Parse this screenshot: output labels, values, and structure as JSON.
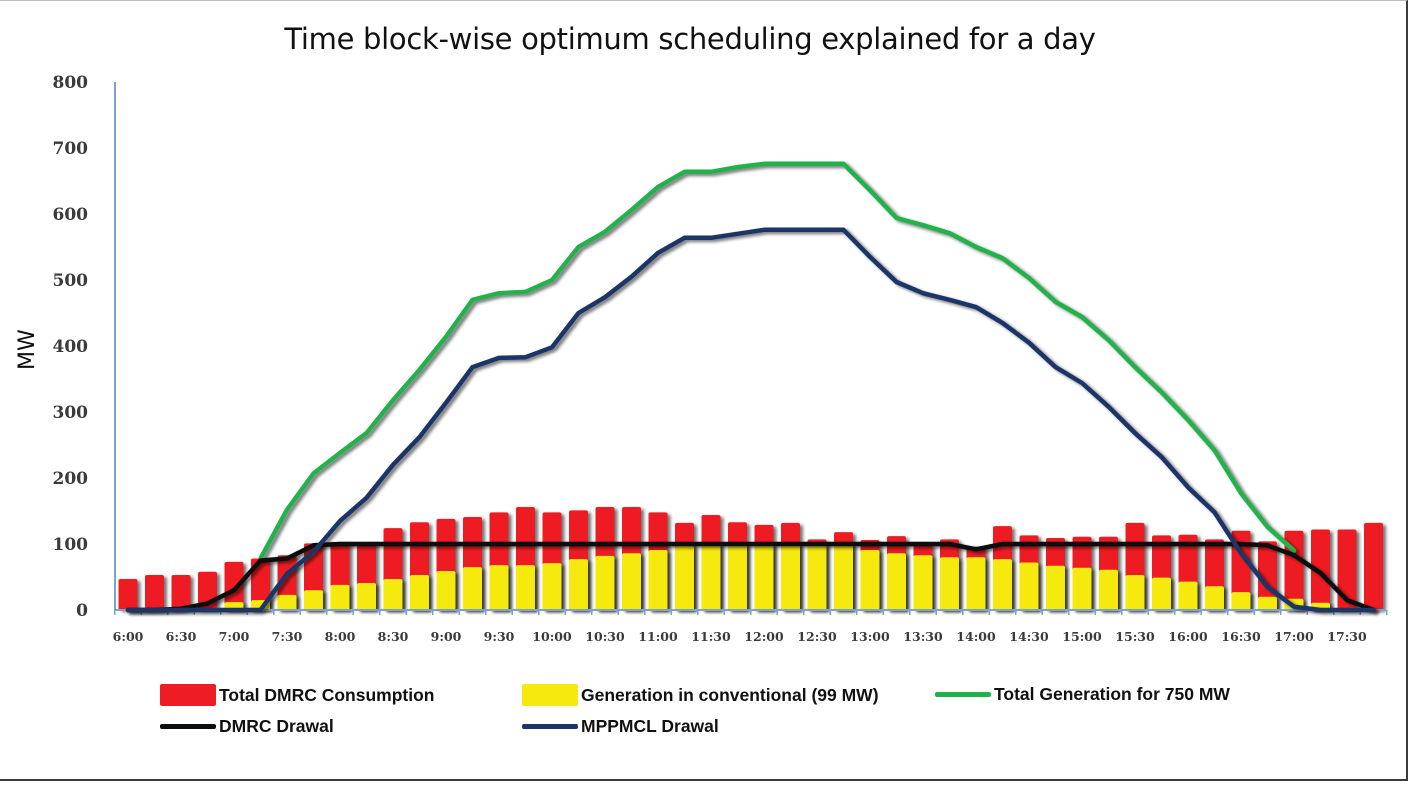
{
  "chart_data": {
    "type": "bar",
    "title": "Time block-wise optimum scheduling explained for a day",
    "xlabel": "",
    "ylabel": "MW",
    "ylim": [
      0,
      800
    ],
    "yticks": [
      0,
      100,
      200,
      300,
      400,
      500,
      600,
      700,
      800
    ],
    "grid": false,
    "legend_position": "bottom",
    "x": [
      "6:00",
      "6:15",
      "6:30",
      "6:45",
      "7:00",
      "7:15",
      "7:30",
      "7:45",
      "8:00",
      "8:15",
      "8:30",
      "8:45",
      "9:00",
      "9:15",
      "9:30",
      "9:45",
      "10:00",
      "10:15",
      "10:30",
      "10:45",
      "11:00",
      "11:15",
      "11:30",
      "11:45",
      "12:00",
      "12:15",
      "12:30",
      "12:45",
      "13:00",
      "13:15",
      "13:30",
      "13:45",
      "14:00",
      "14:15",
      "14:30",
      "14:45",
      "15:00",
      "15:15",
      "15:30",
      "15:45",
      "16:00",
      "16:15",
      "16:30",
      "16:45",
      "17:00",
      "17:15",
      "17:30",
      "17:45"
    ],
    "xtick_labels": [
      "6:00",
      "6:30",
      "7:00",
      "7:30",
      "8:00",
      "8:30",
      "9:00",
      "9:30",
      "10:00",
      "10:30",
      "11:00",
      "11:30",
      "12:00",
      "12:30",
      "13:00",
      "13:30",
      "14:00",
      "14:30",
      "15:00",
      "15:30",
      "16:00",
      "16:30",
      "17:00",
      "17:30"
    ],
    "series": [
      {
        "name": "Total DMRC Consumption",
        "kind": "bar",
        "color": "#ee1c24",
        "values": [
          47,
          53,
          53,
          58,
          73,
          78,
          83,
          101,
          103,
          103,
          124,
          133,
          138,
          141,
          148,
          156,
          148,
          151,
          156,
          156,
          148,
          132,
          144,
          133,
          129,
          132,
          107,
          118,
          106,
          112,
          101,
          107,
          96,
          127,
          113,
          109,
          111,
          111,
          132,
          113,
          114,
          107,
          120,
          104,
          120,
          122,
          122,
          132
        ]
      },
      {
        "name": "Generation in conventional (99 MW)",
        "kind": "bar",
        "color": "#f5e90e",
        "values": [
          0,
          0,
          0,
          2,
          12,
          15,
          23,
          30,
          38,
          41,
          47,
          53,
          59,
          65,
          68,
          68,
          71,
          77,
          82,
          86,
          91,
          97,
          99,
          99,
          99,
          99,
          99,
          99,
          91,
          86,
          83,
          80,
          80,
          77,
          72,
          67,
          64,
          61,
          53,
          49,
          43,
          36,
          27,
          20,
          17,
          11,
          0,
          0
        ]
      },
      {
        "name": "Total Generation for 750 MW",
        "kind": "line",
        "color": "#22b14c",
        "values": [
          null,
          null,
          null,
          null,
          null,
          78,
          152,
          207,
          238,
          268,
          318,
          364,
          414,
          470,
          480,
          482,
          500,
          550,
          573,
          606,
          641,
          664,
          664,
          671,
          676,
          676,
          676,
          676,
          636,
          594,
          583,
          571,
          550,
          533,
          503,
          467,
          444,
          409,
          368,
          330,
          288,
          242,
          177,
          126,
          90,
          null,
          null,
          null
        ]
      },
      {
        "name": "DMRC Drawal",
        "kind": "line",
        "color": "#0d0d0d",
        "values": [
          0,
          0,
          2,
          10,
          30,
          75,
          78,
          98,
          100,
          100,
          100,
          100,
          100,
          100,
          100,
          100,
          100,
          100,
          100,
          100,
          100,
          100,
          100,
          100,
          100,
          100,
          100,
          100,
          100,
          100,
          100,
          100,
          92,
          100,
          100,
          100,
          100,
          100,
          100,
          100,
          100,
          100,
          100,
          98,
          83,
          56,
          15,
          0
        ]
      },
      {
        "name": "MPPMCL Drawal",
        "kind": "line",
        "color": "#1a3668",
        "values": [
          0,
          0,
          0,
          0,
          0,
          0,
          55,
          88,
          135,
          170,
          220,
          262,
          314,
          368,
          382,
          383,
          398,
          450,
          474,
          505,
          541,
          564,
          564,
          570,
          576,
          576,
          576,
          576,
          535,
          497,
          480,
          470,
          459,
          435,
          405,
          368,
          344,
          308,
          268,
          232,
          186,
          148,
          86,
          35,
          5,
          0,
          0,
          0
        ]
      }
    ]
  },
  "legend": {
    "items": [
      {
        "label": "Total DMRC Consumption",
        "type": "box",
        "color": "#ee1c24"
      },
      {
        "label": "Generation in conventional (99 MW)",
        "type": "box",
        "color": "#f5e90e"
      },
      {
        "label": "Total Generation for 750 MW",
        "type": "line",
        "color": "#22b14c"
      },
      {
        "label": "DMRC Drawal",
        "type": "line",
        "color": "#0d0d0d"
      },
      {
        "label": "MPPMCL Drawal",
        "type": "line",
        "color": "#1a3668"
      }
    ]
  },
  "axis_color": "#7ba3cc"
}
